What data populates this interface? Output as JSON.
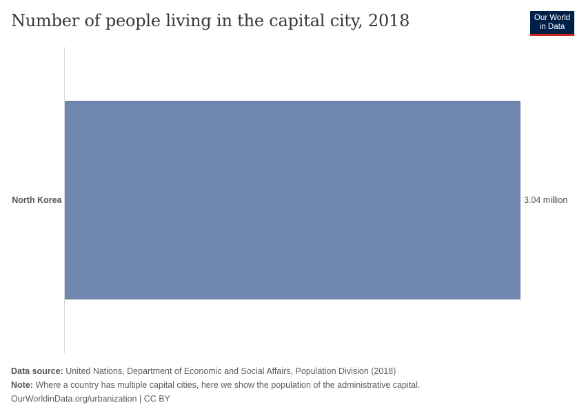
{
  "header": {
    "title": "Number of people living in the capital city, 2018",
    "logo_line1": "Our World",
    "logo_line2": "in Data"
  },
  "chart_data": {
    "type": "bar",
    "orientation": "horizontal",
    "categories": [
      "North Korea"
    ],
    "values": [
      3040000
    ],
    "value_labels": [
      "3.04 million"
    ],
    "title": "Number of people living in the capital city, 2018",
    "xlabel": "",
    "ylabel": "",
    "xlim": [
      0,
      3040000
    ],
    "grid": false,
    "bar_color": "#6f87ae"
  },
  "footer": {
    "source_label": "Data source:",
    "source_text": "United Nations, Department of Economic and Social Affairs, Population Division (2018)",
    "note_label": "Note:",
    "note_text": "Where a country has multiple capital cities, here we show the population of the administrative capital.",
    "link_text": "OurWorldinData.org/urbanization | CC BY"
  }
}
